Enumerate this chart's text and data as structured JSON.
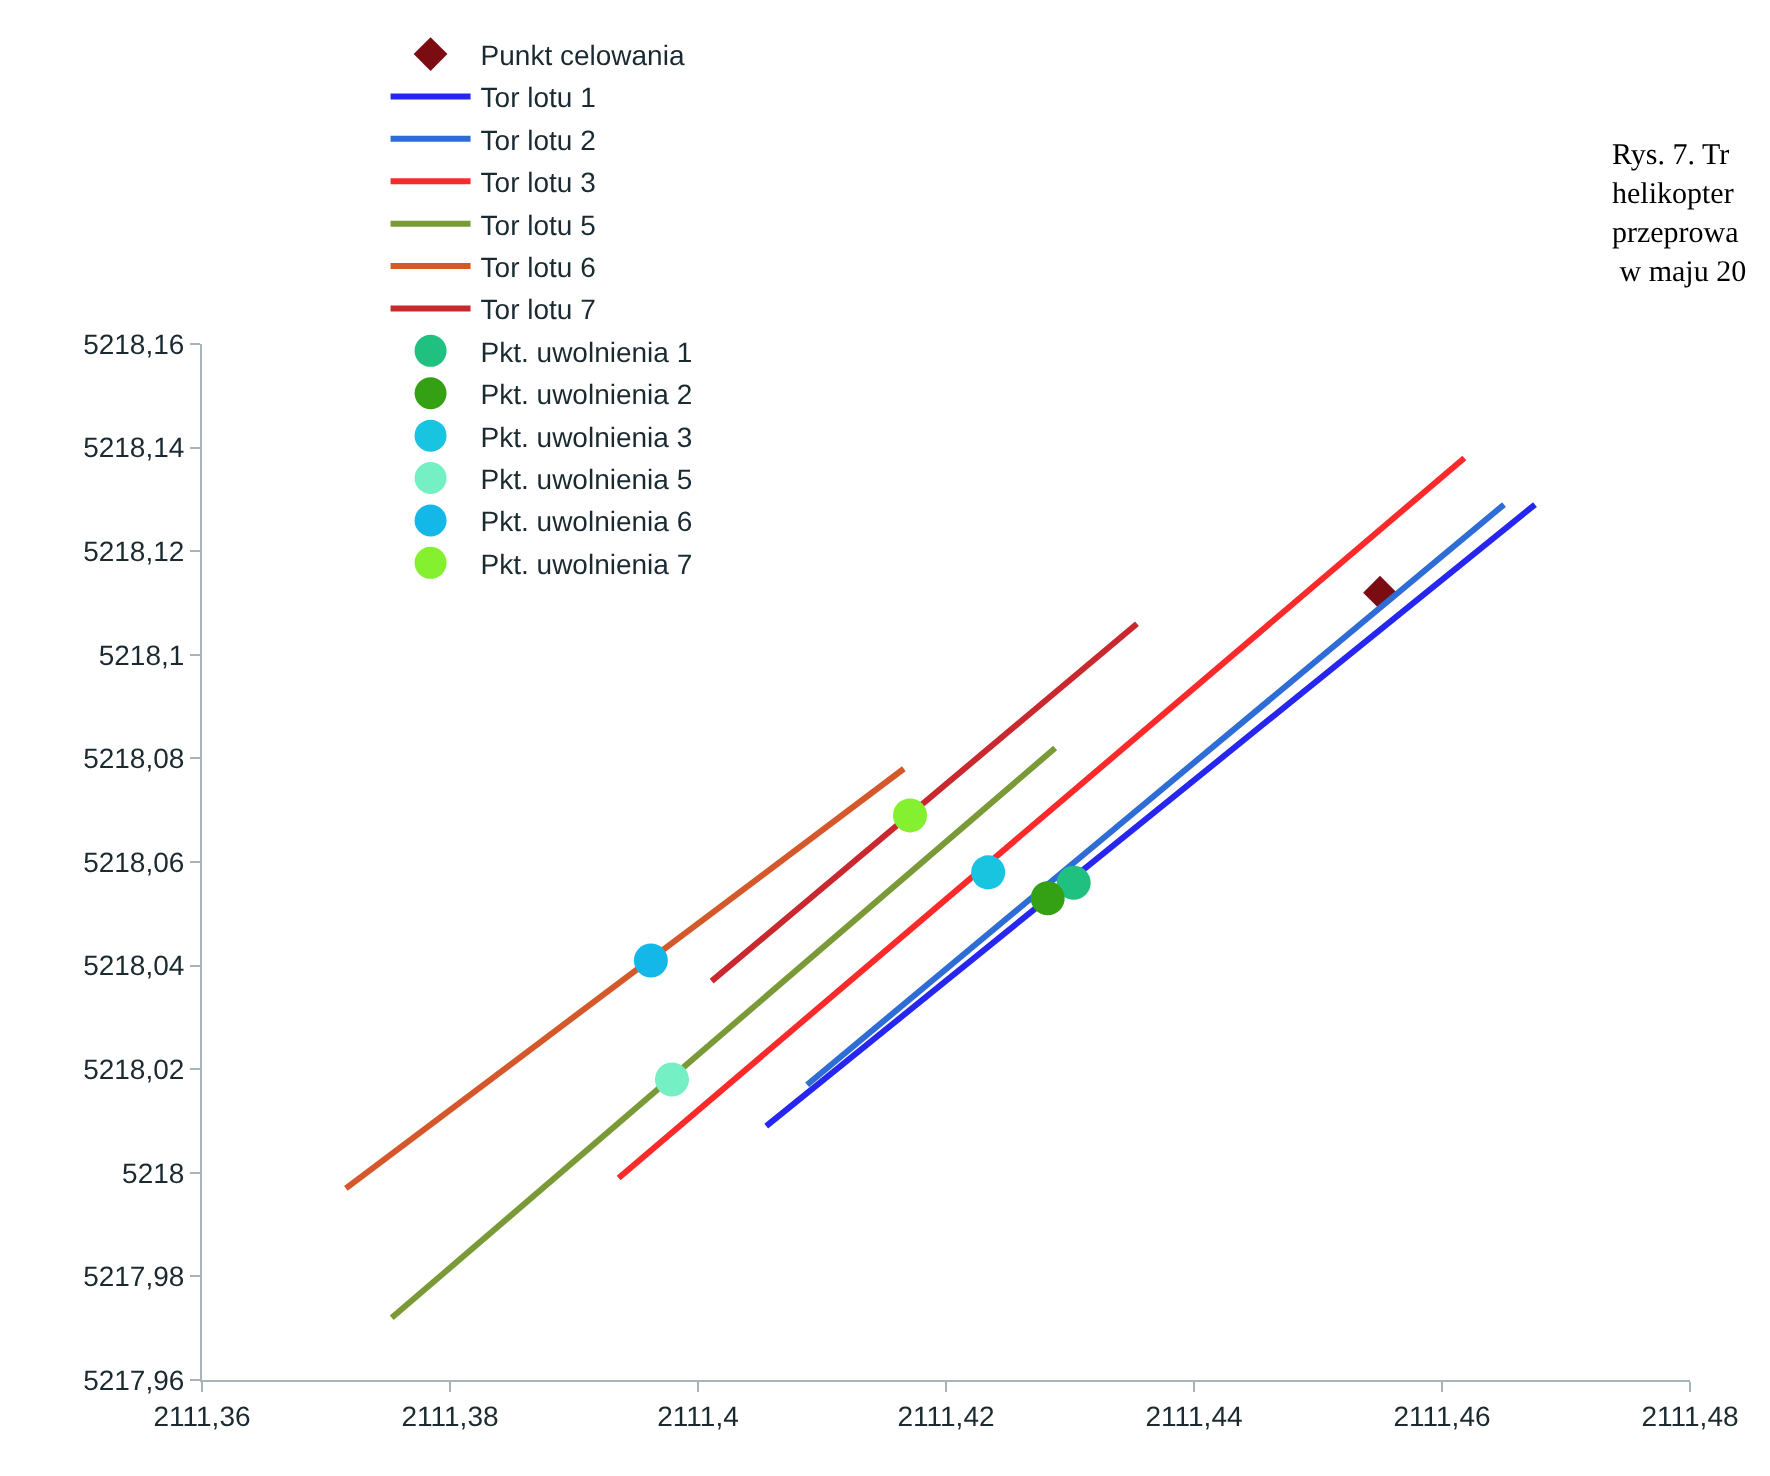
{
  "chart_data": {
    "type": "line",
    "annotations": [
      "Rys. 7. Tr\nhelikopter\nprzeprowa\n w maju 20"
    ],
    "xlim": [
      2111.36,
      2111.48
    ],
    "ylim": [
      5217.96,
      5218.16
    ],
    "xticks": [
      {
        "value": 2111.36,
        "label": "2111,36"
      },
      {
        "value": 2111.38,
        "label": "2111,38"
      },
      {
        "value": 2111.4,
        "label": "2111,4"
      },
      {
        "value": 2111.42,
        "label": "2111,42"
      },
      {
        "value": 2111.44,
        "label": "2111,44"
      },
      {
        "value": 2111.46,
        "label": "2111,46"
      },
      {
        "value": 2111.48,
        "label": "2111,48"
      }
    ],
    "yticks": [
      {
        "value": 5217.96,
        "label": "5217,96"
      },
      {
        "value": 5217.98,
        "label": "5217,98"
      },
      {
        "value": 5218,
        "label": "5218"
      },
      {
        "value": 5218.02,
        "label": "5218,02"
      },
      {
        "value": 5218.04,
        "label": "5218,04"
      },
      {
        "value": 5218.06,
        "label": "5218,06"
      },
      {
        "value": 5218.08,
        "label": "5218,08"
      },
      {
        "value": 5218.1,
        "label": "5218,1"
      },
      {
        "value": 5218.12,
        "label": "5218,12"
      },
      {
        "value": 5218.14,
        "label": "5218,14"
      },
      {
        "value": 5218.16,
        "label": "5218,16"
      }
    ],
    "grid": false,
    "legend": "top left",
    "line_style": "solid",
    "series": [
      {
        "name": "Punkt celowania",
        "type": "scatter",
        "marker": "diamond",
        "color": "#7b0c12",
        "x": [
          2111.455
        ],
        "values": [
          5218.112
        ]
      },
      {
        "name": "Tor lotu 1",
        "color": "#2626f0",
        "x": [
          2111.4055,
          2111.4675
        ],
        "values": [
          5218.009,
          5218.129
        ]
      },
      {
        "name": "Tor lotu 2",
        "color": "#2e6cd6",
        "x": [
          2111.4088,
          2111.465
        ],
        "values": [
          5218.017,
          5218.129
        ]
      },
      {
        "name": "Tor lotu 3",
        "color": "#fa2a2a",
        "x": [
          2111.3936,
          2111.4618
        ],
        "values": [
          5217.999,
          5218.138
        ]
      },
      {
        "name": "Tor lotu 5",
        "color": "#7a9a38",
        "x": [
          2111.3753,
          2111.4288
        ],
        "values": [
          5217.972,
          5218.082
        ]
      },
      {
        "name": "Tor lotu 6",
        "color": "#d4582a",
        "x": [
          2111.3716,
          2111.4166
        ],
        "values": [
          5217.997,
          5218.078
        ]
      },
      {
        "name": "Tor lotu 7",
        "color": "#c8282e",
        "x": [
          2111.4011,
          2111.4354
        ],
        "values": [
          5218.037,
          5218.106
        ]
      },
      {
        "name": "Pkt. uwolnienia 1",
        "type": "scatter",
        "marker": "circle",
        "color": "#20c080",
        "x": [
          2111.4303
        ],
        "values": [
          5218.056
        ]
      },
      {
        "name": "Pkt. uwolnienia 2",
        "type": "scatter",
        "marker": "circle",
        "color": "#34a014",
        "x": [
          2111.4282
        ],
        "values": [
          5218.053
        ]
      },
      {
        "name": "Pkt. uwolnienia 3",
        "type": "scatter",
        "marker": "circle",
        "color": "#18c4e0",
        "x": [
          2111.4234
        ],
        "values": [
          5218.058
        ]
      },
      {
        "name": "Pkt. uwolnienia 5",
        "type": "scatter",
        "marker": "circle",
        "color": "#74f0c4",
        "x": [
          2111.3979
        ],
        "values": [
          5218.018
        ]
      },
      {
        "name": "Pkt. uwolnienia 6",
        "type": "scatter",
        "marker": "circle",
        "color": "#14b8e8",
        "x": [
          2111.3962
        ],
        "values": [
          5218.041
        ]
      },
      {
        "name": "Pkt. uwolnienia 7",
        "type": "scatter",
        "marker": "circle",
        "color": "#84f030",
        "x": [
          2111.4171
        ],
        "values": [
          5218.069
        ]
      }
    ]
  }
}
